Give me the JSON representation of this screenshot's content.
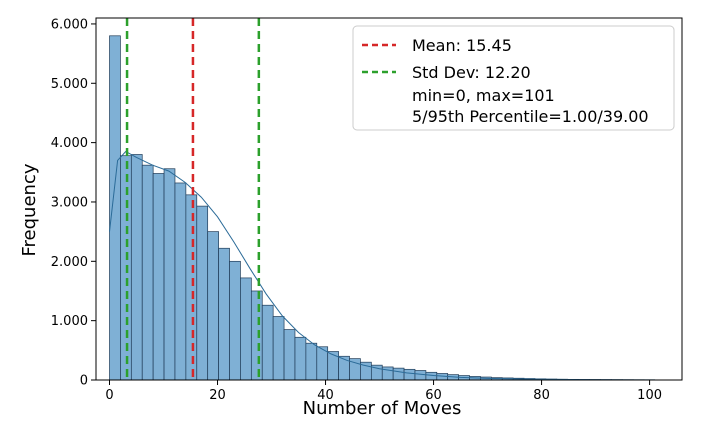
{
  "chart_data": {
    "type": "bar",
    "title": "",
    "xlabel": "Number of Moves",
    "ylabel": "Frequency",
    "xlim": [
      -2.5,
      106
    ],
    "ylim": [
      0,
      6100
    ],
    "xticks": [
      0,
      20,
      40,
      60,
      80,
      100
    ],
    "xtick_labels": [
      "0",
      "20",
      "40",
      "60",
      "80",
      "100"
    ],
    "yticks": [
      0,
      1000,
      2000,
      3000,
      4000,
      5000,
      6000
    ],
    "ytick_labels": [
      "0",
      "1.000",
      "2.000",
      "3.000",
      "4.000",
      "5.000",
      "6.000"
    ],
    "bin_width": 2.02,
    "bin_start": 0,
    "series": [
      {
        "values": [
          5800,
          3780,
          3800,
          3620,
          3480,
          3560,
          3320,
          3120,
          2930,
          2500,
          2220,
          2000,
          1720,
          1500,
          1260,
          1070,
          850,
          720,
          620,
          560,
          480,
          400,
          360,
          300,
          250,
          220,
          200,
          180,
          160,
          130,
          110,
          90,
          75,
          60,
          50,
          40,
          35,
          30,
          25,
          20,
          16,
          13,
          11,
          9,
          8,
          7,
          6,
          5,
          4,
          3
        ]
      }
    ],
    "kde_points": [
      [
        0,
        2500
      ],
      [
        1.5,
        3700
      ],
      [
        3,
        3850
      ],
      [
        5,
        3750
      ],
      [
        8,
        3620
      ],
      [
        11,
        3520
      ],
      [
        14,
        3330
      ],
      [
        17,
        3080
      ],
      [
        20,
        2750
      ],
      [
        23,
        2330
      ],
      [
        26,
        1880
      ],
      [
        29,
        1450
      ],
      [
        32,
        1080
      ],
      [
        35,
        800
      ],
      [
        38,
        590
      ],
      [
        41,
        440
      ],
      [
        44,
        330
      ],
      [
        47,
        250
      ],
      [
        50,
        190
      ],
      [
        55,
        120
      ],
      [
        60,
        75
      ],
      [
        65,
        45
      ],
      [
        70,
        28
      ],
      [
        80,
        12
      ],
      [
        90,
        5
      ],
      [
        101,
        2
      ]
    ],
    "reference_lines": [
      {
        "name": "Mean: 15.45",
        "x": 15.45,
        "color": "#d62728"
      },
      {
        "name": "Std Dev: 12.20",
        "x": 3.25,
        "color": "#2ca02c"
      },
      {
        "name": "Std Dev: 12.20",
        "x": 27.65,
        "color": "#2ca02c"
      }
    ],
    "legend": {
      "placement": "top-right",
      "entries": [
        {
          "label": "Mean: 15.45",
          "color": "#d62728"
        },
        {
          "label": "Std Dev: 12.20",
          "color": "#2ca02c"
        }
      ],
      "extra_lines": [
        "min=0, max=101",
        "5/95th Percentile=1.00/39.00"
      ]
    },
    "bar_color": "#7fb0d5",
    "bar_edge_color": "#1f3b57",
    "kde_color": "#2b6b98",
    "grid": false
  }
}
